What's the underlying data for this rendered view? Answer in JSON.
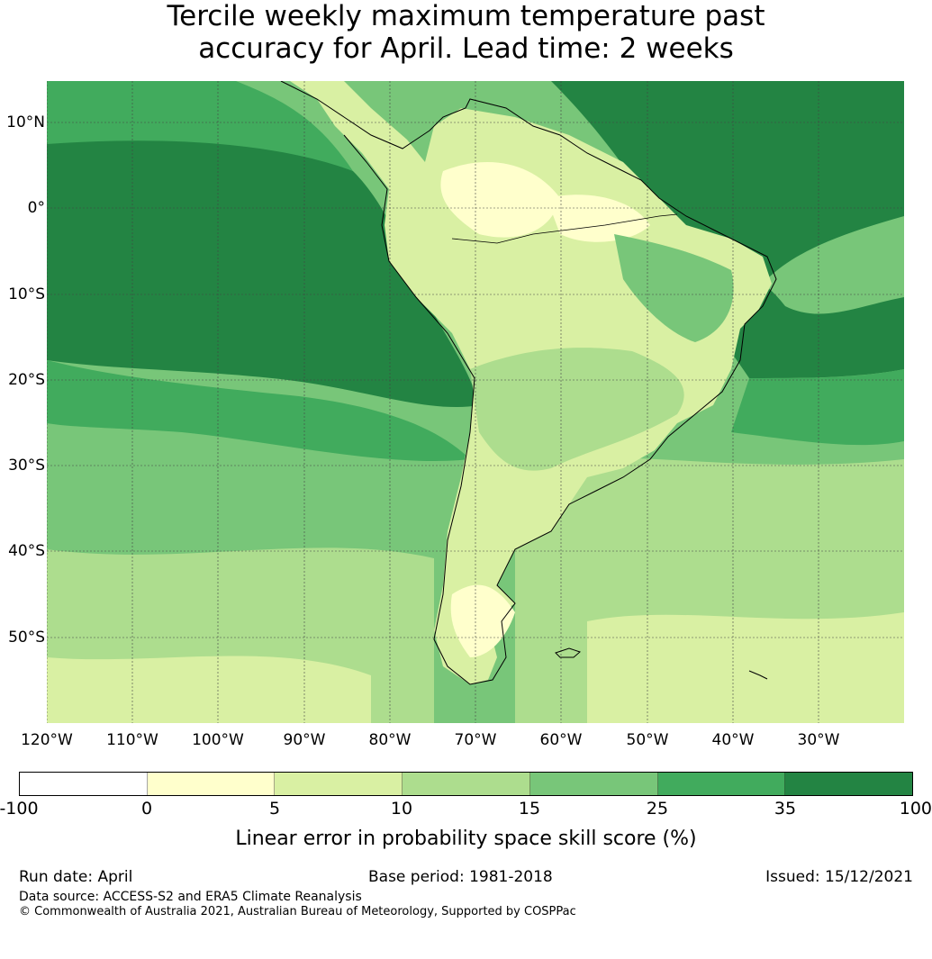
{
  "title_line1": "Tercile weekly maximum temperature past",
  "title_line2": "accuracy for April. Lead time: 2 weeks",
  "map": {
    "lat_labels": [
      "10°N",
      "0°",
      "10°S",
      "20°S",
      "30°S",
      "40°S",
      "50°S"
    ],
    "lon_labels": [
      "120°W",
      "110°W",
      "100°W",
      "90°W",
      "80°W",
      "70°W",
      "60°W",
      "50°W",
      "40°W",
      "30°W"
    ]
  },
  "colorbar": {
    "ticks": [
      "-100",
      "0",
      "5",
      "10",
      "15",
      "25",
      "35",
      "100"
    ],
    "colors": [
      "#ffffff",
      "#ffffcc",
      "#d9f0a3",
      "#addd8e",
      "#78c679",
      "#41ab5d",
      "#238443"
    ],
    "label": "Linear error in probability space skill score (%)"
  },
  "footer": {
    "run_date": "Run date: April",
    "base_period": "Base period: 1981-2018",
    "issued": "Issued: 15/12/2021",
    "data_source": "Data source: ACCESS-S2 and ERA5 Climate Reanalysis",
    "copyright": "© Commonwealth of Australia 2021, Australian Bureau of Meteorology, Supported by COSPPac"
  }
}
